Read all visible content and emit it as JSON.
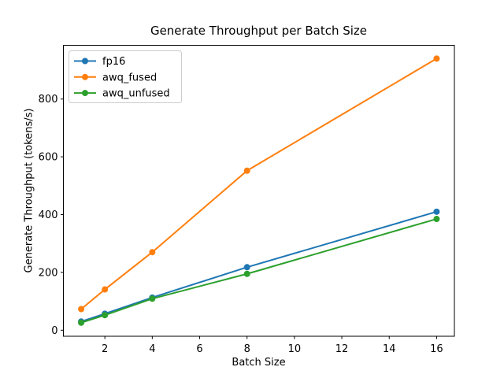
{
  "window": {
    "background": "#ffffff"
  },
  "chart_data": {
    "type": "line",
    "title": "Generate Throughput per Batch Size",
    "xlabel": "Batch Size",
    "ylabel": "Generate Throughput (tokens/s)",
    "x": [
      1,
      2,
      4,
      8,
      16
    ],
    "series": [
      {
        "name": "fp16",
        "color": "#1f77b4",
        "values": [
          30,
          57,
          113,
          218,
          410
        ]
      },
      {
        "name": "awq_fused",
        "color": "#ff7f0e",
        "values": [
          73,
          141,
          270,
          552,
          940
        ]
      },
      {
        "name": "awq_unfused",
        "color": "#2ca02c",
        "values": [
          26,
          52,
          109,
          195,
          385
        ]
      }
    ],
    "x_ticks": [
      2,
      4,
      6,
      8,
      10,
      12,
      14,
      16
    ],
    "y_ticks": [
      0,
      200,
      400,
      600,
      800
    ],
    "xlim": [
      0.25,
      16.75
    ],
    "ylim": [
      -21,
      986
    ],
    "grid": false,
    "legend_position": "upper left",
    "axis_color": "#000000",
    "legend_border_color": "#cccccc",
    "legend_background": "#ffffff"
  }
}
